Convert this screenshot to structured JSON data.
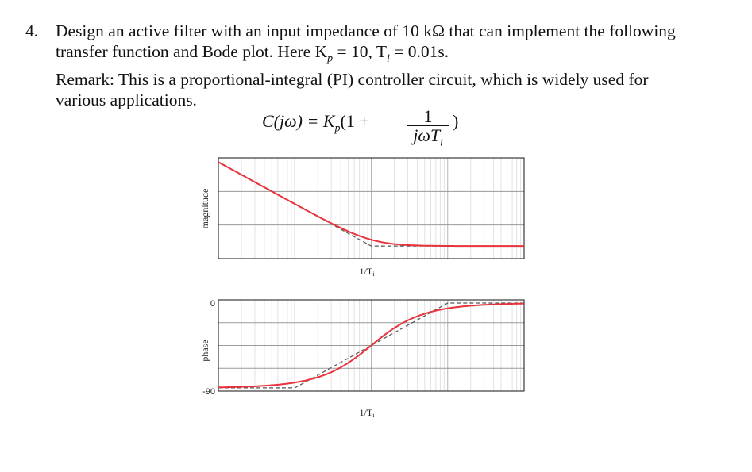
{
  "problem": {
    "number": "4.",
    "lines": [
      "Design an active filter with an input impedance of 10 kΩ that can implement the following",
      "transfer function and Bode plot.  Here K",
      "Remark: This is a proportional-integral (PI) controller circuit, which is widely used for",
      "various applications."
    ],
    "params": {
      "Kp_label": "= 10, T",
      "Ti_value": "= 0.01s."
    }
  },
  "equation": {
    "lhs": "C(jω) = K",
    "lhs_sub": "p",
    "mid": "(1 +",
    "frac_num": "1",
    "frac_den": "jωT",
    "frac_den_sub": "i",
    "close": ")"
  },
  "chart_data": [
    {
      "type": "line",
      "title": "",
      "ylabel": "magnitude",
      "xlabel": "1/T",
      "xlabel_sub": "i",
      "x_scale": "log",
      "y_scale": "dB",
      "grid": true,
      "series": [
        {
          "style": "solid",
          "color": "#e8323c",
          "x": [
            0.01,
            0.03,
            0.1,
            0.3,
            1,
            3,
            10,
            30,
            100
          ],
          "y": [
            40.04,
            30.5,
            21.1,
            17.6,
            15.0,
            13.4,
            12.7,
            12.1,
            12.0
          ]
        },
        {
          "style": "dashed",
          "color": "#555555",
          "x": [
            0.01,
            1,
            100
          ],
          "y": [
            40.04,
            0.0,
            0.0
          ]
        }
      ]
    },
    {
      "type": "line",
      "title": "",
      "ylabel": "phase",
      "xlabel": "1/T",
      "xlabel_sub": "i",
      "x_scale": "log",
      "yticks": [
        "0",
        "-90"
      ],
      "ylim": [
        -90,
        0
      ],
      "grid": true,
      "series": [
        {
          "style": "solid",
          "color": "#e8323c",
          "x": [
            0.01,
            0.03,
            0.1,
            0.3,
            1,
            3,
            10,
            30,
            100
          ],
          "y": [
            -89.4,
            -88.3,
            -84.3,
            -73.3,
            -45.0,
            -18.4,
            -5.7,
            -1.9,
            -0.6
          ]
        },
        {
          "style": "dashed",
          "color": "#555555",
          "x": [
            0.01,
            0.1,
            1,
            10,
            100
          ],
          "y": [
            -90,
            -90,
            -45,
            0,
            0
          ]
        }
      ]
    }
  ],
  "colors": {
    "curve": "#e8323c",
    "asymptote": "#555555",
    "grid": "#c8c8c8",
    "axes": "#111111"
  }
}
